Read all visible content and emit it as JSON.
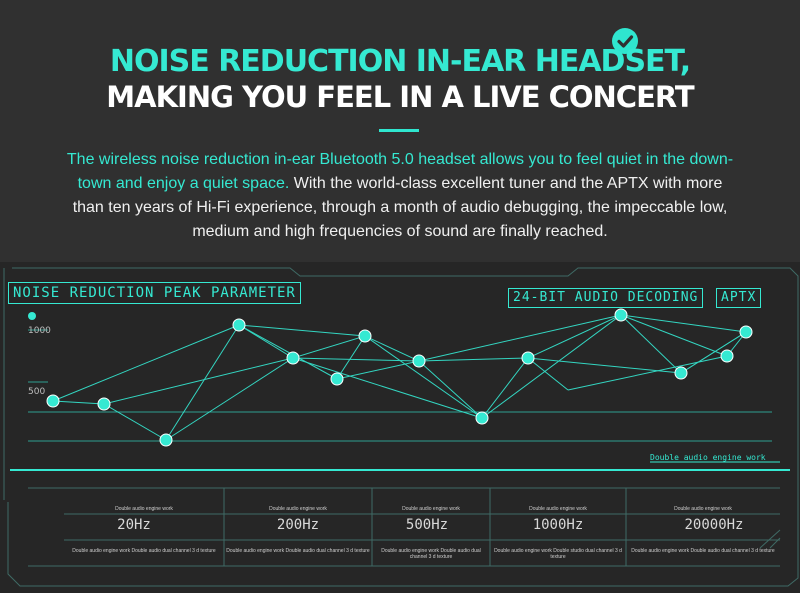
{
  "colors": {
    "accent": "#35e9d2",
    "background": "#303030",
    "panel": "#262626"
  },
  "header": {
    "icon": "check-circle-icon",
    "line1": "NOISE REDUCTION IN-EAR HEADSET,",
    "line2": "MAKING YOU FEEL IN A LIVE CONCERT"
  },
  "intro": {
    "highlight": "The wireless noise reduction in-ear Bluetooth 5.0 headset allows you to feel quiet in the down-town and enjoy a quiet space.",
    "rest": " With the world-class excellent tuner and the APTX with more than ten years of Hi-Fi experience, through a month of audio debugging, the impeccable low, medium and high frequencies of sound are finally reached."
  },
  "panel": {
    "peak_title": "NOISE REDUCTION PEAK PARAMETER",
    "bit_title": "24-BIT AUDIO DECODING",
    "aptx": "APTX",
    "y_high": "1000",
    "y_low": "500",
    "deco_text": "Double audio engine work",
    "frequencies": [
      {
        "freq": "20Hz",
        "engine": "Double audio engine work",
        "long": "Double audio engine work Double audio dual channel 3 d texture"
      },
      {
        "freq": "200Hz",
        "engine": "Double audio engine work",
        "long": "Double audio engine work Double audio dual channel 3 d texture"
      },
      {
        "freq": "500Hz",
        "engine": "Double audio engine work",
        "long": "Double audio engine work Double audio dual channel 3 d texture"
      },
      {
        "freq": "1000Hz",
        "engine": "Double audio engine work",
        "long": "Double audio engine work Double studio dual channel 3 d texture"
      },
      {
        "freq": "20000Hz",
        "engine": "Double audio engine work",
        "long": "Double audio engine work Double audio dual channel 3 d texture"
      }
    ]
  }
}
